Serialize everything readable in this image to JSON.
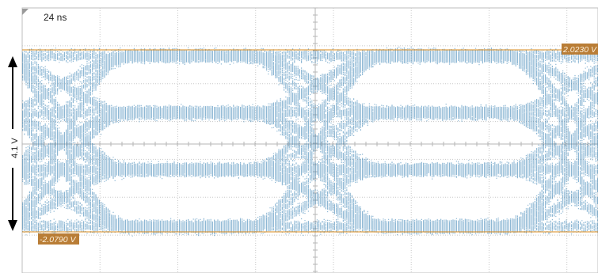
{
  "chart_data": {
    "type": "scatter",
    "subtype": "eye-diagram",
    "timebase_label": "24 ns",
    "amplitude_label": "4.1 V",
    "cursor_top": {
      "label": "2.0230 V",
      "value": 2.023
    },
    "cursor_bottom": {
      "label": "-2.0790 V",
      "value": -2.079
    },
    "levels": [
      "-3",
      "-1",
      "+1",
      "+3"
    ],
    "grid": true,
    "grid_divisions": {
      "x": 10,
      "y": 7
    },
    "colors": {
      "trace": "#2f7bb0",
      "cursor": "#d9891a",
      "cursor_label_bg": "#c98a3a",
      "grid": "#c8c8c8",
      "arrow": "#000000"
    }
  }
}
